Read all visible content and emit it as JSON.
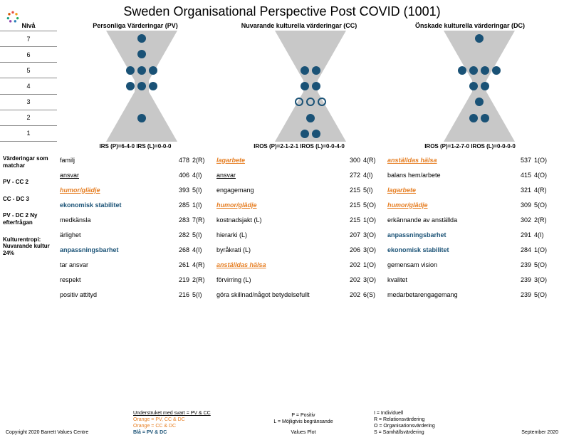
{
  "title": "Sweden Organisational Perspective Post COVID (1001)",
  "colHeaders": {
    "niva": "Nivå",
    "pv": "Personliga Värderingar (PV)",
    "cc": "Nuvarande kulturella värderingar (CC)",
    "dc": "Önskade kulturella värderingar (DC)"
  },
  "levels": [
    "7",
    "6",
    "5",
    "4",
    "3",
    "2",
    "1"
  ],
  "hourglass": {
    "trapezoid_color": "#c0c0c0",
    "dot_color": "#1a5276",
    "pv": {
      "dots": {
        "7": 1,
        "6": 1,
        "5": 3,
        "4": 3,
        "3": 0,
        "2": 1,
        "1": 0
      },
      "rings": {
        "3": 0
      }
    },
    "cc": {
      "dots": {
        "7": 0,
        "6": 0,
        "5": 2,
        "4": 2,
        "3": 0,
        "2": 1,
        "1": 2
      },
      "rings": {
        "3": 3
      }
    },
    "dc": {
      "dots": {
        "7": 1,
        "6": 0,
        "5": 4,
        "4": 2,
        "3": 1,
        "2": 2,
        "1": 0
      },
      "rings": {}
    }
  },
  "irs": {
    "pv": "IRS (P)=6-4-0 IRS (L)=0-0-0",
    "cc": "IROS (P)=2-1-2-1 IROS (L)=0-0-4-0",
    "dc": "IROS (P)=1-2-7-0 IROS (L)=0-0-0-0"
  },
  "sideLabels": {
    "matchar": "Värderingar som matchar",
    "pvcc": "PV - CC 2",
    "ccdc": "CC - DC 3",
    "pvdc": "PV - DC 2 Ny efterfrågan",
    "entropi": "Kulturentropi: Nuvarande kultur 24%"
  },
  "table": {
    "pv": [
      {
        "name": "familj",
        "num": 478,
        "code": "2(R)",
        "style": ""
      },
      {
        "name": "ansvar",
        "num": 406,
        "code": "4(I)",
        "style": "und"
      },
      {
        "name": "humor/glädje",
        "num": 393,
        "code": "5(I)",
        "style": "orange"
      },
      {
        "name": "ekonomisk stabilitet",
        "num": 285,
        "code": "1(I)",
        "style": "bold"
      },
      {
        "name": "medkänsla",
        "num": 283,
        "code": "7(R)",
        "style": ""
      },
      {
        "name": "ärlighet",
        "num": 282,
        "code": "5(I)",
        "style": ""
      },
      {
        "name": "anpassningsbarhet",
        "num": 268,
        "code": "4(I)",
        "style": "bold"
      },
      {
        "name": "tar ansvar",
        "num": 261,
        "code": "4(R)",
        "style": ""
      },
      {
        "name": "respekt",
        "num": 219,
        "code": "2(R)",
        "style": ""
      },
      {
        "name": "positiv attityd",
        "num": 216,
        "code": "5(I)",
        "style": ""
      }
    ],
    "cc": [
      {
        "name": "lagarbete",
        "num": 300,
        "code": "4(R)",
        "style": "orange"
      },
      {
        "name": "ansvar",
        "num": 272,
        "code": "4(I)",
        "style": "und"
      },
      {
        "name": "engagemang",
        "num": 215,
        "code": "5(I)",
        "style": ""
      },
      {
        "name": "humor/glädje",
        "num": 215,
        "code": "5(O)",
        "style": "orange"
      },
      {
        "name": "kostnadsjakt (L)",
        "num": 215,
        "code": "1(O)",
        "style": ""
      },
      {
        "name": "hierarki (L)",
        "num": 207,
        "code": "3(O)",
        "style": ""
      },
      {
        "name": "byråkrati (L)",
        "num": 206,
        "code": "3(O)",
        "style": ""
      },
      {
        "name": "anställdas hälsa",
        "num": 202,
        "code": "1(O)",
        "style": "orange"
      },
      {
        "name": "förvirring (L)",
        "num": 202,
        "code": "3(O)",
        "style": ""
      },
      {
        "name": "göra skillnad/något betydelsefullt",
        "num": 202,
        "code": "6(S)",
        "style": ""
      }
    ],
    "dc": [
      {
        "name": "anställdas hälsa",
        "num": 537,
        "code": "1(O)",
        "style": "orange"
      },
      {
        "name": "balans hem/arbete",
        "num": 415,
        "code": "4(O)",
        "style": ""
      },
      {
        "name": "lagarbete",
        "num": 321,
        "code": "4(R)",
        "style": "orange"
      },
      {
        "name": "humor/glädje",
        "num": 309,
        "code": "5(O)",
        "style": "orange"
      },
      {
        "name": "erkännande av anställda",
        "num": 302,
        "code": "2(R)",
        "style": ""
      },
      {
        "name": "anpassningsbarhet",
        "num": 291,
        "code": "4(I)",
        "style": "bold"
      },
      {
        "name": "ekonomisk stabilitet",
        "num": 284,
        "code": "1(O)",
        "style": "bold"
      },
      {
        "name": "gemensam vision",
        "num": 239,
        "code": "5(O)",
        "style": ""
      },
      {
        "name": "kvalitet",
        "num": 239,
        "code": "3(O)",
        "style": ""
      },
      {
        "name": "medarbetarengagemang",
        "num": 239,
        "code": "5(O)",
        "style": ""
      }
    ]
  },
  "footer": {
    "copyright": "Copyright 2020 Barrett Values Centre",
    "legend1_a": "Understruket med svart = PV & CC",
    "legend1_b": "Orange = PV, CC & DC",
    "legend1_c": "Orange = CC & DC",
    "legend1_d": "Blå = PV & DC",
    "pl_p": "P = Positiv",
    "pl_l": "L = Möjligtvis begränsande",
    "values_plot": "Values Plot",
    "iros_i": "I = Individuell",
    "iros_r": "R = Relationsvärdering",
    "iros_o": "O = Organisationsvärdering",
    "iros_s": "S = Samhällsvärdering",
    "date": "September 2020"
  }
}
